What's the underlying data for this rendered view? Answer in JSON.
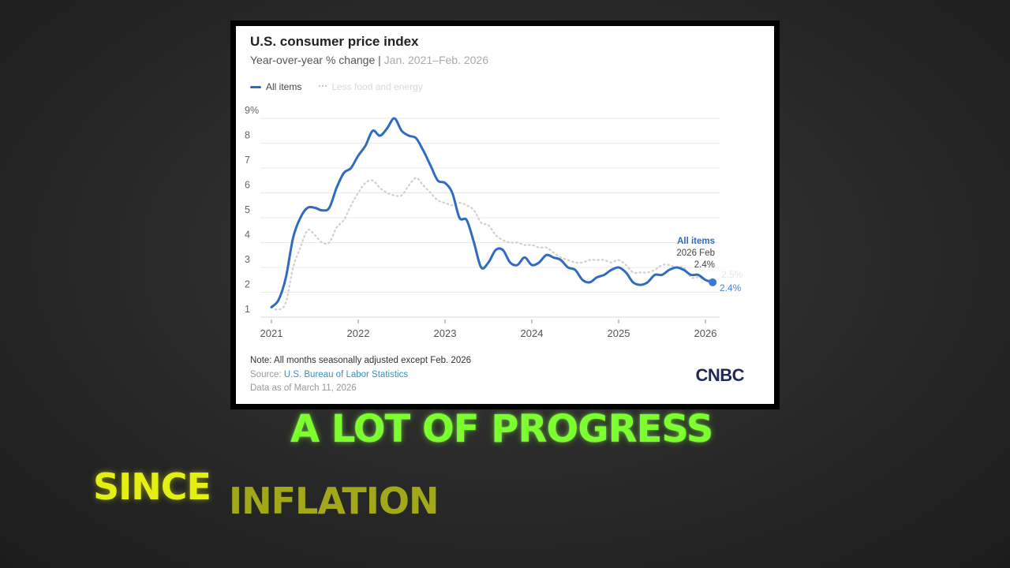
{
  "chart": {
    "title": "U.S. consumer price index",
    "subtitle_main": "Year-over-year % change",
    "subtitle_sep": " | ",
    "subtitle_range": "Jan. 2021–Feb. 2026",
    "legend": [
      {
        "label": "All items",
        "style": "solid",
        "color": "#2f6cc1"
      },
      {
        "label": "Less food and energy",
        "style": "dotted",
        "color": "#c8c8c8"
      }
    ],
    "y_ticks": [
      "9%",
      "8",
      "7",
      "6",
      "5",
      "4",
      "3",
      "2",
      "1"
    ],
    "x_ticks": [
      "2021",
      "2022",
      "2023",
      "2024",
      "2025",
      "2026"
    ],
    "annotation": {
      "series": "All items",
      "date": "2026 Feb",
      "value": "2.4%",
      "end_label_all": "2.4%",
      "end_label_core": "2.5%"
    },
    "note": "Note: All months seasonally adjusted except Feb. 2026",
    "source_prefix": "Source: ",
    "source_link": "U.S. Bureau of Labor Statistics",
    "as_of": "Data as of March 11, 2026",
    "logo": "CNBC"
  },
  "captions": {
    "line1": "A LOT OF PROGRESS",
    "line2a": "SINCE",
    "line2b": "INFLATION"
  },
  "chart_data": {
    "type": "line",
    "title": "U.S. consumer price index",
    "subtitle": "Year-over-year % change | Jan. 2021–Feb. 2026",
    "xlabel": "",
    "ylabel": "%",
    "ylim": [
      1,
      9
    ],
    "grid": true,
    "legend_position": "top-left",
    "x": [
      "2021-01",
      "2021-02",
      "2021-03",
      "2021-04",
      "2021-05",
      "2021-06",
      "2021-07",
      "2021-08",
      "2021-09",
      "2021-10",
      "2021-11",
      "2021-12",
      "2022-01",
      "2022-02",
      "2022-03",
      "2022-04",
      "2022-05",
      "2022-06",
      "2022-07",
      "2022-08",
      "2022-09",
      "2022-10",
      "2022-11",
      "2022-12",
      "2023-01",
      "2023-02",
      "2023-03",
      "2023-04",
      "2023-05",
      "2023-06",
      "2023-07",
      "2023-08",
      "2023-09",
      "2023-10",
      "2023-11",
      "2023-12",
      "2024-01",
      "2024-02",
      "2024-03",
      "2024-04",
      "2024-05",
      "2024-06",
      "2024-07",
      "2024-08",
      "2024-09",
      "2024-10",
      "2024-11",
      "2024-12",
      "2025-01",
      "2025-02",
      "2025-03",
      "2025-04",
      "2025-05",
      "2025-06",
      "2025-07",
      "2025-08",
      "2025-09",
      "2025-10",
      "2025-11",
      "2025-12",
      "2026-01",
      "2026-02"
    ],
    "series": [
      {
        "name": "All items",
        "color": "#2f6cc1",
        "values": [
          1.4,
          1.7,
          2.6,
          4.2,
          5.0,
          5.4,
          5.4,
          5.3,
          5.4,
          6.2,
          6.8,
          7.0,
          7.5,
          7.9,
          8.5,
          8.3,
          8.6,
          9.0,
          8.5,
          8.3,
          8.2,
          7.7,
          7.1,
          6.5,
          6.4,
          6.0,
          5.0,
          4.9,
          4.0,
          3.0,
          3.2,
          3.7,
          3.7,
          3.2,
          3.1,
          3.4,
          3.1,
          3.2,
          3.5,
          3.4,
          3.3,
          3.0,
          2.9,
          2.5,
          2.4,
          2.6,
          2.7,
          2.9,
          3.0,
          2.8,
          2.4,
          2.3,
          2.4,
          2.7,
          2.7,
          2.9,
          3.0,
          2.9,
          2.7,
          2.7,
          2.5,
          2.4
        ]
      },
      {
        "name": "Less food and energy",
        "color": "#c8c8c8",
        "values": [
          1.4,
          1.3,
          1.6,
          3.0,
          3.8,
          4.5,
          4.3,
          4.0,
          4.0,
          4.6,
          4.9,
          5.5,
          6.0,
          6.4,
          6.5,
          6.2,
          6.0,
          5.9,
          5.9,
          6.3,
          6.6,
          6.3,
          6.0,
          5.7,
          5.6,
          5.5,
          5.6,
          5.5,
          5.3,
          4.8,
          4.7,
          4.3,
          4.1,
          4.0,
          4.0,
          3.9,
          3.9,
          3.8,
          3.8,
          3.6,
          3.4,
          3.3,
          3.2,
          3.2,
          3.3,
          3.3,
          3.3,
          3.2,
          3.3,
          3.1,
          2.8,
          2.8,
          2.8,
          2.9,
          3.1,
          3.1,
          3.0,
          3.0,
          2.6,
          2.6,
          2.5,
          2.5
        ]
      }
    ],
    "annotations": [
      {
        "text": "All items 2026 Feb 2.4%",
        "x": "2026-02",
        "y": 2.4
      }
    ]
  }
}
